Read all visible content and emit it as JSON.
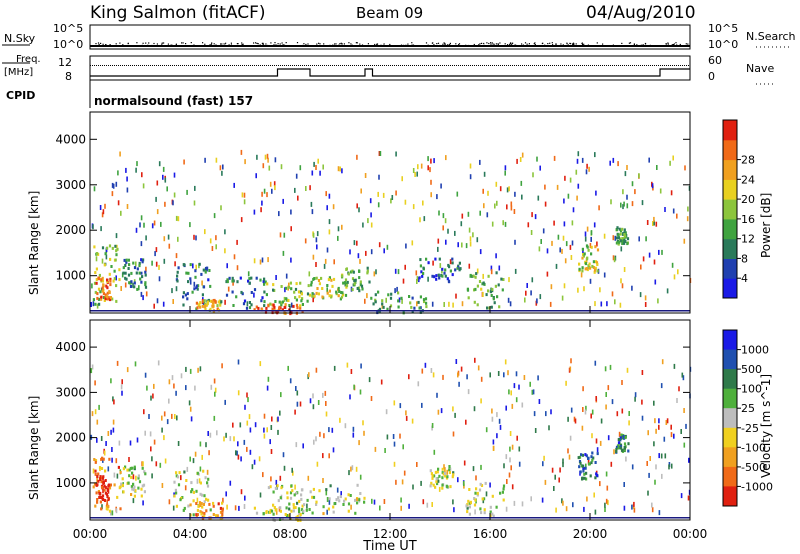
{
  "header": {
    "station": "King Salmon (fitACF)",
    "beam": "Beam 09",
    "date": "04/Aug/2010"
  },
  "top_panels": {
    "nsky_label": "N.Sky",
    "nsearch_label": "N.Search",
    "noise_ticks": [
      "10^5",
      "10^0"
    ],
    "freq_label_1": "Freq.",
    "freq_label_2": "[MHz]",
    "freq_ticks": [
      "12",
      "8"
    ],
    "nave_label": "Nave",
    "nave_ticks": [
      "60",
      "0"
    ],
    "cpid_label": "CPID",
    "cpid_text": "normalsound (fast) 157"
  },
  "x_axis": {
    "label": "Time UT",
    "ticks": [
      "00:00",
      "04:00",
      "08:00",
      "12:00",
      "16:00",
      "20:00",
      "00:00"
    ]
  },
  "power_panel": {
    "ylabel": "Slant Range [km]",
    "yticks": [
      "1000",
      "2000",
      "3000",
      "4000"
    ],
    "colorbar_label": "Power [dB]",
    "colorbar_ticks": [
      "4",
      "8",
      "12",
      "16",
      "20",
      "24",
      "28"
    ],
    "colors": [
      "#1a1ae6",
      "#2040b0",
      "#2a7a5a",
      "#3fa33f",
      "#8cc53c",
      "#e8d020",
      "#f0a020",
      "#f06a18",
      "#e02010"
    ]
  },
  "velocity_panel": {
    "ylabel": "Slant Range [km]",
    "yticks": [
      "1000",
      "2000",
      "3000",
      "4000"
    ],
    "colorbar_label": "Velocity [m s^-1]",
    "colorbar_ticks": [
      "1000",
      "500",
      "100",
      "25",
      "-25",
      "-100",
      "-500",
      "-1000"
    ],
    "colors": [
      "#1a1ae6",
      "#2050b0",
      "#2f7a4a",
      "#4fb03c",
      "#bdbdbd",
      "#f0d020",
      "#f0a020",
      "#f06a18",
      "#e02010"
    ]
  },
  "chart_data": [
    {
      "type": "heatmap",
      "title": "Power [dB]",
      "xlabel": "Time UT",
      "ylabel": "Slant Range [km]",
      "x_range_hours": [
        0,
        24
      ],
      "ylim_km": [
        180,
        4600
      ],
      "color_range_db": [
        0,
        30
      ],
      "regions": [
        {
          "t0": 0.1,
          "t1": 1.3,
          "r0": 400,
          "r1": 1700,
          "value_db": 14
        },
        {
          "t0": 0.2,
          "t1": 0.8,
          "r0": 500,
          "r1": 1000,
          "value_db": 24
        },
        {
          "t0": 1.3,
          "t1": 2.2,
          "r0": 700,
          "r1": 1400,
          "value_db": 8
        },
        {
          "t0": 3.3,
          "t1": 4.8,
          "r0": 300,
          "r1": 1300,
          "value_db": 8
        },
        {
          "t0": 4.2,
          "t1": 5.2,
          "r0": 250,
          "r1": 500,
          "value_db": 20
        },
        {
          "t0": 5.2,
          "t1": 7.0,
          "r0": 300,
          "r1": 1000,
          "value_db": 8
        },
        {
          "t0": 6.5,
          "t1": 8.5,
          "r0": 200,
          "r1": 400,
          "value_db": 26
        },
        {
          "t0": 7.0,
          "t1": 8.8,
          "r0": 350,
          "r1": 900,
          "value_db": 14
        },
        {
          "t0": 8.8,
          "t1": 10.2,
          "r0": 500,
          "r1": 1000,
          "value_db": 16
        },
        {
          "t0": 10.0,
          "t1": 11.2,
          "r0": 700,
          "r1": 1200,
          "value_db": 12
        },
        {
          "t0": 11.2,
          "t1": 13.5,
          "r0": 200,
          "r1": 700,
          "value_db": 10
        },
        {
          "t0": 13.0,
          "t1": 14.8,
          "r0": 900,
          "r1": 1400,
          "value_db": 6
        },
        {
          "t0": 15.0,
          "t1": 16.5,
          "r0": 300,
          "r1": 1100,
          "value_db": 12
        },
        {
          "t0": 19.5,
          "t1": 20.3,
          "r0": 1100,
          "r1": 1700,
          "value_db": 16
        },
        {
          "t0": 21.0,
          "t1": 21.5,
          "r0": 1700,
          "r1": 2100,
          "value_db": 12
        }
      ]
    },
    {
      "type": "heatmap",
      "title": "Velocity [m s^-1]",
      "xlabel": "Time UT",
      "ylabel": "Slant Range [km]",
      "x_range_hours": [
        0,
        24
      ],
      "ylim_km": [
        180,
        4600
      ],
      "color_range_ms": [
        -1000,
        1000
      ],
      "regions": [
        {
          "t0": 0.1,
          "t1": 1.2,
          "r0": 400,
          "r1": 1600,
          "value_ms": -500
        },
        {
          "t0": 0.2,
          "t1": 0.7,
          "r0": 600,
          "r1": 1200,
          "value_ms": -1000
        },
        {
          "t0": 1.2,
          "t1": 2.2,
          "r0": 700,
          "r1": 1400,
          "value_ms": 0
        },
        {
          "t0": 3.3,
          "t1": 4.8,
          "r0": 300,
          "r1": 1300,
          "value_ms": 0
        },
        {
          "t0": 4.2,
          "t1": 5.3,
          "r0": 250,
          "r1": 600,
          "value_ms": -500
        },
        {
          "t0": 6.5,
          "t1": 8.5,
          "r0": 200,
          "r1": 500,
          "value_ms": 10
        },
        {
          "t0": 7.0,
          "t1": 11.0,
          "r0": 350,
          "r1": 1000,
          "value_ms": 0
        },
        {
          "t0": 13.5,
          "t1": 14.5,
          "r0": 900,
          "r1": 1400,
          "value_ms": 0
        },
        {
          "t0": 15.0,
          "t1": 16.6,
          "r0": 300,
          "r1": 1100,
          "value_ms": 0
        },
        {
          "t0": 19.5,
          "t1": 20.3,
          "r0": 1100,
          "r1": 1700,
          "value_ms": 500
        },
        {
          "t0": 21.0,
          "t1": 21.5,
          "r0": 1700,
          "r1": 2100,
          "value_ms": 500
        }
      ]
    }
  ]
}
